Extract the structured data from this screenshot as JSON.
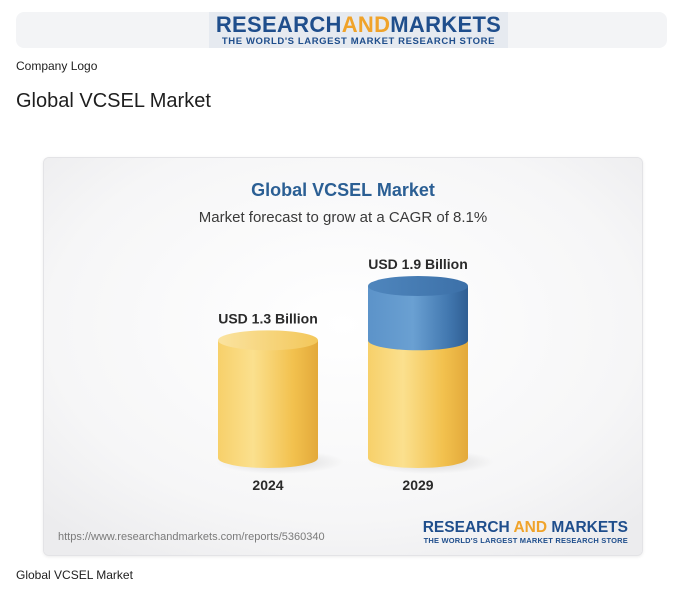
{
  "header": {
    "logo_main_1": "RESEARCH",
    "logo_main_and": "AND",
    "logo_main_2": "MARKETS",
    "logo_tagline": "THE WORLD'S LARGEST MARKET RESEARCH STORE",
    "logo_caption": "Company Logo"
  },
  "page": {
    "title": "Global VCSEL Market",
    "figure_caption": "Global VCSEL Market"
  },
  "chart_data": {
    "type": "bar",
    "title": "Global VCSEL Market",
    "subtitle": "Market forecast to grow at a CAGR of 8.1%",
    "categories": [
      "2024",
      "2029"
    ],
    "values": [
      1.3,
      1.9
    ],
    "value_labels": [
      "USD 1.3 Billion",
      "USD 1.9 Billion"
    ],
    "unit": "USD Billion",
    "highlight_increment": {
      "category": "2029",
      "from": 1.3,
      "to": 1.9
    },
    "ylim": [
      0,
      1.9
    ],
    "grid": false,
    "legend": "none",
    "colors": {
      "base_bar": "#f2c14e",
      "base_bar_light": "#fbe08e",
      "base_bar_dark": "#e3a93a",
      "increment_bar": "#4e86bf",
      "increment_bar_dark": "#2f5e93",
      "title": "#2b5f94"
    }
  },
  "footer": {
    "source_url": "https://www.researchandmarkets.com/reports/5360340",
    "logo_main_1": "RESEARCH ",
    "logo_main_and": "AND",
    "logo_main_2": " MARKETS",
    "logo_tagline": "THE WORLD'S LARGEST MARKET RESEARCH STORE"
  }
}
